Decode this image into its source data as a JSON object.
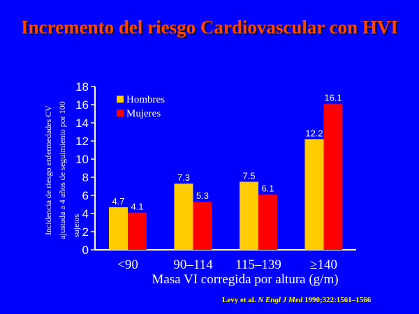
{
  "title": "Incremento del riesgo Cardiovascular con HVI",
  "citation": {
    "authors": "Levy et al.",
    "journal": "N Engl J Med",
    "reference": "1990;322:1561–1566"
  },
  "colors": {
    "background": "#0000ff",
    "title": "#ff4500",
    "hombres": "#ffcc00",
    "mujeres": "#ff0000",
    "text": "#ffffff",
    "citation": "#ffff00"
  },
  "chart_data": {
    "type": "bar",
    "title": "Incremento del riesgo Cardiovascular con HVI",
    "xlabel": "Masa VI corregida por altura (g/m)",
    "ylabel_lines": [
      "Incidencia de riesgo enfermedades CV",
      "ajustada a 4 años de seguimiento por 100",
      "sujetos"
    ],
    "categories": [
      "<90",
      "90–114",
      "115–139",
      "≥140"
    ],
    "series": [
      {
        "name": "Hombres",
        "color": "#ffcc00",
        "values": [
          4.7,
          7.3,
          7.5,
          12.2
        ],
        "labels": [
          "4.7",
          "7.3",
          "7.5",
          "12.2"
        ]
      },
      {
        "name": "Mujeres",
        "color": "#ff0000",
        "values": [
          4.1,
          5.3,
          6.1,
          16.1
        ],
        "labels": [
          "4.1",
          "5.3",
          "6.1",
          "16.1"
        ]
      }
    ],
    "ylim": [
      0,
      18
    ],
    "yticks": [
      0,
      2,
      4,
      6,
      8,
      10,
      12,
      14,
      16,
      18
    ],
    "legend_position": "top-left",
    "grid": false
  }
}
